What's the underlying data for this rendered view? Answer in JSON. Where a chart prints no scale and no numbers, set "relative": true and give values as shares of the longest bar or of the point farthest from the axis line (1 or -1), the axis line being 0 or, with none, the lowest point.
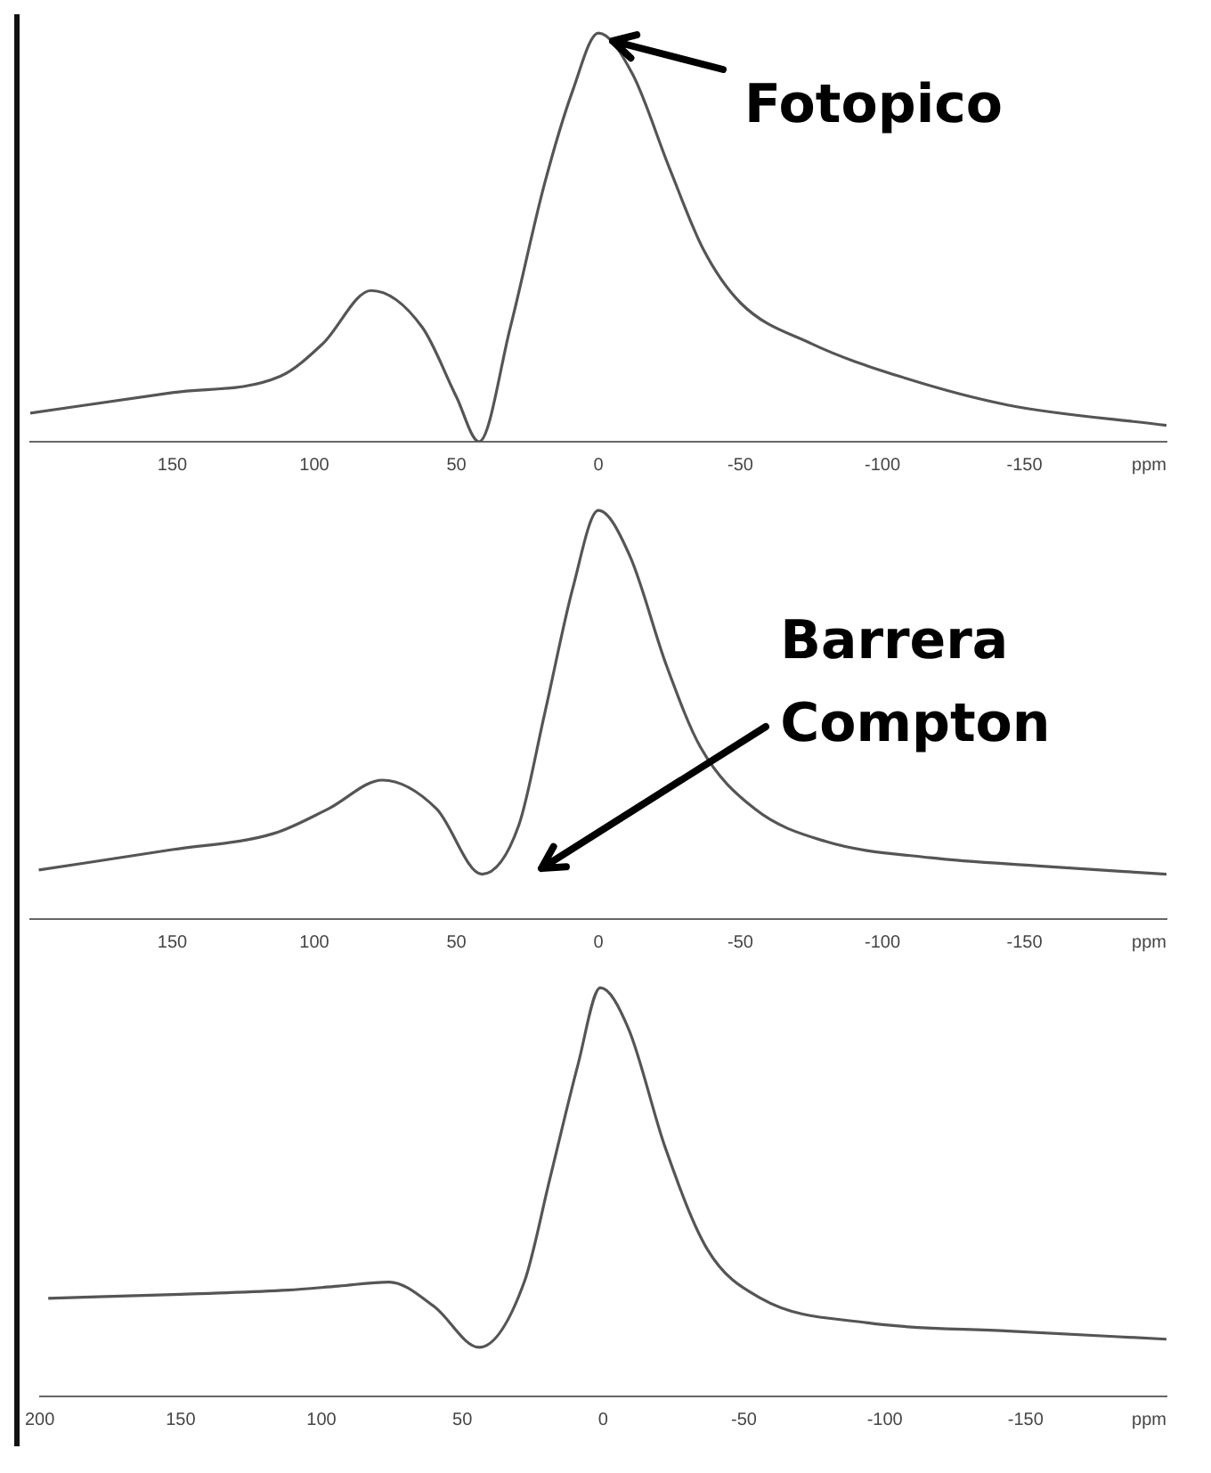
{
  "chart_data": [
    {
      "type": "line",
      "relative": true,
      "color": "#555555",
      "xlabel": "ppm",
      "xlim": [
        200,
        -200
      ],
      "xticks": [
        150,
        100,
        50,
        0,
        -50,
        -100,
        -150
      ],
      "marker": "none",
      "legend": false,
      "grid": false,
      "x": [
        200,
        150,
        112,
        97,
        80,
        62,
        50,
        42,
        31,
        19,
        9,
        0,
        -12,
        -25,
        -37,
        -50,
        -75,
        -106,
        -144,
        -200
      ],
      "values": [
        0.07,
        0.12,
        0.16,
        0.24,
        0.37,
        0.28,
        0.11,
        0.0,
        0.28,
        0.63,
        0.86,
        1.0,
        0.9,
        0.67,
        0.47,
        0.34,
        0.24,
        0.16,
        0.09,
        0.04
      ],
      "annotations": [
        {
          "text": "Fotopico",
          "x": 0,
          "y": 1.0
        }
      ]
    },
    {
      "type": "line",
      "relative": true,
      "color": "#555555",
      "xlabel": "ppm",
      "xlim": [
        200,
        -200
      ],
      "xticks": [
        150,
        100,
        50,
        0,
        -50,
        -100,
        -150
      ],
      "marker": "none",
      "legend": false,
      "grid": false,
      "x": [
        197,
        150,
        114,
        95,
        76,
        57,
        41,
        28,
        19,
        9,
        0,
        -11,
        -24,
        -36,
        -55,
        -80,
        -117,
        -155,
        -200
      ],
      "values": [
        0.12,
        0.17,
        0.21,
        0.27,
        0.34,
        0.27,
        0.11,
        0.23,
        0.5,
        0.81,
        1.0,
        0.89,
        0.62,
        0.42,
        0.27,
        0.19,
        0.15,
        0.13,
        0.11
      ],
      "annotations": [
        "Barrera Compton"
      ]
    },
    {
      "type": "line",
      "relative": true,
      "color": "#555555",
      "xlabel": "ppm",
      "xlim": [
        200,
        -200
      ],
      "xticks": [
        200,
        150,
        100,
        50,
        0,
        -50,
        -100,
        -150
      ],
      "marker": "none",
      "legend": false,
      "grid": false,
      "x": [
        197,
        150,
        112,
        94,
        76,
        60,
        44,
        28,
        19,
        9,
        1,
        -9,
        -22,
        -37,
        -56,
        -94,
        -144,
        -200
      ],
      "values": [
        0.24,
        0.25,
        0.26,
        0.27,
        0.28,
        0.22,
        0.12,
        0.28,
        0.53,
        0.81,
        1.0,
        0.9,
        0.61,
        0.36,
        0.24,
        0.18,
        0.16,
        0.14
      ]
    }
  ]
}
